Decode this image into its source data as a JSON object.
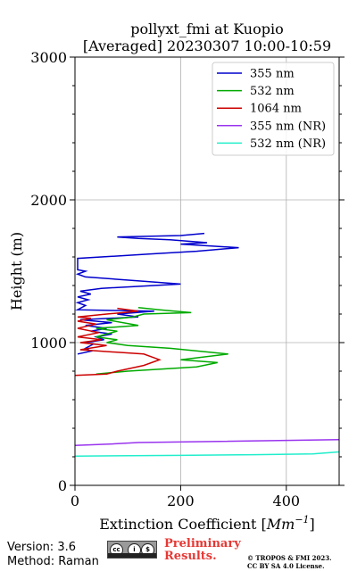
{
  "chart_data": {
    "type": "line",
    "title_line1": "pollyxt_fmi at Kuopio",
    "title_line2": "[Averaged] 20230307 10:00-10:59",
    "xlabel": "Extinction Coefficient [",
    "xlabel_unit": "Mm",
    "xlabel_exp": "−1",
    "xlabel_close": "]",
    "ylabel": "Height (m)",
    "xlim": [
      0,
      500
    ],
    "ylim": [
      0,
      3000
    ],
    "xticks": [
      0,
      200,
      400
    ],
    "yticks": [
      0,
      1000,
      2000,
      3000
    ],
    "grid": true,
    "legend_position": "top-right",
    "series": [
      {
        "name": "355 nm",
        "color": "#0000cc",
        "points": [
          [
            5,
            920
          ],
          [
            30,
            940
          ],
          [
            20,
            960
          ],
          [
            35,
            990
          ],
          [
            20,
            1000
          ],
          [
            55,
            1020
          ],
          [
            40,
            1040
          ],
          [
            70,
            1060
          ],
          [
            30,
            1080
          ],
          [
            60,
            1100
          ],
          [
            20,
            1120
          ],
          [
            70,
            1140
          ],
          [
            10,
            1160
          ],
          [
            120,
            1180
          ],
          [
            80,
            1200
          ],
          [
            150,
            1220
          ],
          [
            5,
            1230
          ],
          [
            20,
            1260
          ],
          [
            5,
            1280
          ],
          [
            25,
            1300
          ],
          [
            5,
            1320
          ],
          [
            30,
            1340
          ],
          [
            10,
            1360
          ],
          [
            50,
            1380
          ],
          [
            200,
            1410
          ],
          [
            130,
            1430
          ],
          [
            20,
            1460
          ],
          [
            5,
            1480
          ],
          [
            20,
            1500
          ],
          [
            5,
            1510
          ],
          [
            5,
            1590
          ],
          [
            140,
            1620
          ],
          [
            230,
            1640
          ],
          [
            310,
            1665
          ],
          [
            200,
            1690
          ],
          [
            250,
            1700
          ],
          [
            180,
            1720
          ],
          [
            120,
            1730
          ],
          [
            80,
            1740
          ],
          [
            200,
            1750
          ],
          [
            245,
            1765
          ]
        ]
      },
      {
        "name": "532 nm",
        "color": "#00aa00",
        "points": [
          [
            40,
            780
          ],
          [
            100,
            800
          ],
          [
            230,
            830
          ],
          [
            270,
            860
          ],
          [
            200,
            880
          ],
          [
            290,
            920
          ],
          [
            180,
            960
          ],
          [
            100,
            980
          ],
          [
            60,
            1000
          ],
          [
            80,
            1020
          ],
          [
            40,
            1040
          ],
          [
            60,
            1060
          ],
          [
            80,
            1080
          ],
          [
            40,
            1100
          ],
          [
            120,
            1120
          ],
          [
            60,
            1160
          ],
          [
            110,
            1180
          ],
          [
            130,
            1200
          ],
          [
            220,
            1210
          ],
          [
            160,
            1230
          ],
          [
            120,
            1245
          ]
        ]
      },
      {
        "name": "1064 nm",
        "color": "#cc0000",
        "points": [
          [
            0,
            770
          ],
          [
            60,
            780
          ],
          [
            80,
            800
          ],
          [
            130,
            840
          ],
          [
            160,
            880
          ],
          [
            130,
            920
          ],
          [
            10,
            950
          ],
          [
            60,
            980
          ],
          [
            10,
            1000
          ],
          [
            50,
            1020
          ],
          [
            5,
            1040
          ],
          [
            45,
            1070
          ],
          [
            5,
            1100
          ],
          [
            40,
            1130
          ],
          [
            5,
            1150
          ],
          [
            30,
            1170
          ],
          [
            5,
            1180
          ],
          [
            60,
            1200
          ],
          [
            120,
            1220
          ],
          [
            80,
            1240
          ]
        ]
      },
      {
        "name": "355 nm (NR)",
        "color": "#9933ee",
        "points": [
          [
            0,
            280
          ],
          [
            70,
            290
          ],
          [
            120,
            300
          ],
          [
            500,
            320
          ],
          [
            520,
            340
          ]
        ]
      },
      {
        "name": "532 nm (NR)",
        "color": "#22eecc",
        "points": [
          [
            0,
            205
          ],
          [
            200,
            210
          ],
          [
            340,
            215
          ],
          [
            450,
            220
          ],
          [
            520,
            240
          ]
        ]
      }
    ]
  },
  "footer": {
    "version": "Version: 3.6",
    "method": "Method: Raman",
    "cc_labels": [
      "cc",
      "i",
      "$"
    ],
    "preliminary_line1": "Preliminary",
    "preliminary_line2": "Results.",
    "copyright_line1": "© TROPOS & FMI 2023.",
    "copyright_line2": "CC BY SA 4.0 License."
  }
}
